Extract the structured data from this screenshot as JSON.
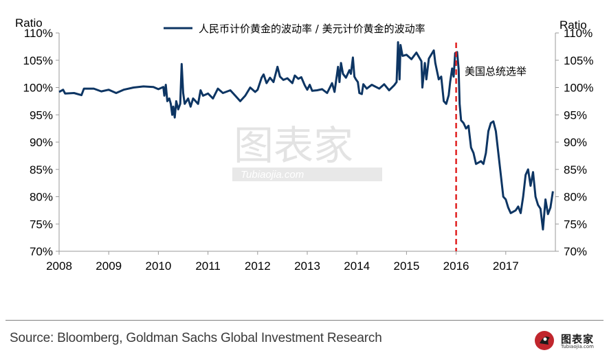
{
  "chart_data": {
    "type": "line",
    "title": "",
    "ylabel_left": "Ratio",
    "ylabel_right": "Ratio",
    "xlabel": "",
    "ylim": [
      70,
      110
    ],
    "xlim": [
      2008.0,
      2018.0
    ],
    "y_ticks": [
      "70%",
      "75%",
      "80%",
      "85%",
      "90%",
      "95%",
      "100%",
      "105%",
      "110%"
    ],
    "y_tick_values": [
      70,
      75,
      80,
      85,
      90,
      95,
      100,
      105,
      110
    ],
    "x_ticks": [
      "2008",
      "2009",
      "2010",
      "2011",
      "2012",
      "2013",
      "2014",
      "2015",
      "2016",
      "2017"
    ],
    "x_tick_values": [
      2008,
      2009,
      2010,
      2011,
      2012,
      2013,
      2014,
      2015,
      2016,
      2017
    ],
    "grid": false,
    "legend_position": "top",
    "series": [
      {
        "name": "人民币计价黄金的波动率 / 美元计价黄金的波动率",
        "color": "#0d3563",
        "points": [
          [
            2008.0,
            99.2
          ],
          [
            2008.08,
            99.6
          ],
          [
            2008.12,
            98.9
          ],
          [
            2008.3,
            99.0
          ],
          [
            2008.45,
            98.6
          ],
          [
            2008.5,
            99.8
          ],
          [
            2008.7,
            99.8
          ],
          [
            2008.85,
            99.3
          ],
          [
            2009.0,
            99.6
          ],
          [
            2009.15,
            99.0
          ],
          [
            2009.3,
            99.6
          ],
          [
            2009.5,
            100.0
          ],
          [
            2009.7,
            100.2
          ],
          [
            2009.9,
            100.1
          ],
          [
            2010.0,
            99.7
          ],
          [
            2010.1,
            100.1
          ],
          [
            2010.12,
            98.5
          ],
          [
            2010.15,
            100.5
          ],
          [
            2010.18,
            97.5
          ],
          [
            2010.22,
            98.0
          ],
          [
            2010.25,
            97.0
          ],
          [
            2010.28,
            95.0
          ],
          [
            2010.3,
            96.5
          ],
          [
            2010.33,
            94.5
          ],
          [
            2010.36,
            97.5
          ],
          [
            2010.4,
            96.0
          ],
          [
            2010.44,
            97.0
          ],
          [
            2010.47,
            104.3
          ],
          [
            2010.5,
            99.0
          ],
          [
            2010.53,
            97.0
          ],
          [
            2010.6,
            98.0
          ],
          [
            2010.65,
            96.5
          ],
          [
            2010.7,
            98.0
          ],
          [
            2010.8,
            97.0
          ],
          [
            2010.85,
            99.5
          ],
          [
            2010.9,
            98.5
          ],
          [
            2011.0,
            98.9
          ],
          [
            2011.1,
            98.0
          ],
          [
            2011.2,
            99.8
          ],
          [
            2011.3,
            99.0
          ],
          [
            2011.45,
            99.5
          ],
          [
            2011.55,
            98.5
          ],
          [
            2011.65,
            97.5
          ],
          [
            2011.75,
            98.5
          ],
          [
            2011.85,
            100.0
          ],
          [
            2011.95,
            99.2
          ],
          [
            2012.0,
            99.6
          ],
          [
            2012.08,
            101.8
          ],
          [
            2012.12,
            102.4
          ],
          [
            2012.18,
            100.8
          ],
          [
            2012.25,
            101.8
          ],
          [
            2012.32,
            101.0
          ],
          [
            2012.4,
            103.8
          ],
          [
            2012.45,
            102.0
          ],
          [
            2012.52,
            101.4
          ],
          [
            2012.6,
            101.7
          ],
          [
            2012.7,
            100.8
          ],
          [
            2012.75,
            102.2
          ],
          [
            2012.82,
            101.6
          ],
          [
            2012.88,
            101.9
          ],
          [
            2012.95,
            100.4
          ],
          [
            2013.0,
            99.6
          ],
          [
            2013.05,
            100.5
          ],
          [
            2013.1,
            99.4
          ],
          [
            2013.2,
            99.5
          ],
          [
            2013.3,
            99.7
          ],
          [
            2013.4,
            99.0
          ],
          [
            2013.5,
            100.8
          ],
          [
            2013.55,
            99.2
          ],
          [
            2013.62,
            103.8
          ],
          [
            2013.65,
            101.0
          ],
          [
            2013.68,
            104.5
          ],
          [
            2013.72,
            102.5
          ],
          [
            2013.78,
            101.8
          ],
          [
            2013.85,
            103.2
          ],
          [
            2013.88,
            102.5
          ],
          [
            2013.92,
            105.5
          ],
          [
            2013.95,
            102.0
          ],
          [
            2013.98,
            101.5
          ],
          [
            2014.02,
            101.0
          ],
          [
            2014.05,
            99.0
          ],
          [
            2014.1,
            98.8
          ],
          [
            2014.13,
            100.6
          ],
          [
            2014.2,
            99.8
          ],
          [
            2014.3,
            100.5
          ],
          [
            2014.45,
            99.8
          ],
          [
            2014.55,
            100.6
          ],
          [
            2014.65,
            99.5
          ],
          [
            2014.75,
            100.4
          ],
          [
            2014.8,
            101.0
          ],
          [
            2014.83,
            108.3
          ],
          [
            2014.86,
            101.5
          ],
          [
            2014.88,
            107.8
          ],
          [
            2014.92,
            105.8
          ],
          [
            2015.0,
            106.0
          ],
          [
            2015.1,
            105.2
          ],
          [
            2015.2,
            106.4
          ],
          [
            2015.3,
            104.8
          ],
          [
            2015.32,
            100.0
          ],
          [
            2015.37,
            104.5
          ],
          [
            2015.4,
            101.5
          ],
          [
            2015.45,
            105.3
          ],
          [
            2015.55,
            106.8
          ],
          [
            2015.58,
            104.5
          ],
          [
            2015.65,
            101.5
          ],
          [
            2015.7,
            102.0
          ],
          [
            2015.75,
            97.5
          ],
          [
            2015.8,
            97.0
          ],
          [
            2015.85,
            98.6
          ],
          [
            2015.88,
            101.0
          ],
          [
            2015.92,
            103.5
          ],
          [
            2015.95,
            102.0
          ],
          [
            2015.98,
            106.3
          ],
          [
            2016.02,
            106.5
          ],
          [
            2016.05,
            103.5
          ],
          [
            2016.07,
            97.0
          ],
          [
            2016.1,
            94.0
          ],
          [
            2016.15,
            93.5
          ],
          [
            2016.2,
            92.5
          ],
          [
            2016.25,
            93.0
          ],
          [
            2016.3,
            89.0
          ],
          [
            2016.35,
            88.0
          ],
          [
            2016.4,
            86.0
          ],
          [
            2016.5,
            86.5
          ],
          [
            2016.55,
            86.0
          ],
          [
            2016.6,
            88.0
          ],
          [
            2016.65,
            92.0
          ],
          [
            2016.7,
            93.5
          ],
          [
            2016.75,
            93.8
          ],
          [
            2016.8,
            92.0
          ],
          [
            2016.85,
            88.0
          ],
          [
            2016.9,
            84.0
          ],
          [
            2016.95,
            80.0
          ],
          [
            2017.0,
            79.5
          ],
          [
            2017.05,
            78.0
          ],
          [
            2017.1,
            77.0
          ],
          [
            2017.2,
            77.5
          ],
          [
            2017.25,
            78.2
          ],
          [
            2017.3,
            77.0
          ],
          [
            2017.35,
            80.0
          ],
          [
            2017.4,
            84.0
          ],
          [
            2017.45,
            85.0
          ],
          [
            2017.5,
            82.0
          ],
          [
            2017.55,
            84.5
          ],
          [
            2017.6,
            80.0
          ],
          [
            2017.65,
            78.5
          ],
          [
            2017.7,
            77.8
          ],
          [
            2017.75,
            74.0
          ],
          [
            2017.8,
            79.5
          ],
          [
            2017.85,
            76.8
          ],
          [
            2017.9,
            78.0
          ],
          [
            2017.95,
            81.0
          ]
        ]
      }
    ],
    "annotations": [
      {
        "text": "美国总统选举",
        "x": 2016.0,
        "line_color": "#e02020",
        "line_style": "dashed"
      }
    ]
  },
  "source_text": "Source: Bloomberg, Goldman Sachs Global Investment Research",
  "watermark": {
    "main": "图表家",
    "sub": "Tubiaojia.com"
  },
  "logo": {
    "text": "图表家",
    "sub": "Tubiaojia.com"
  }
}
